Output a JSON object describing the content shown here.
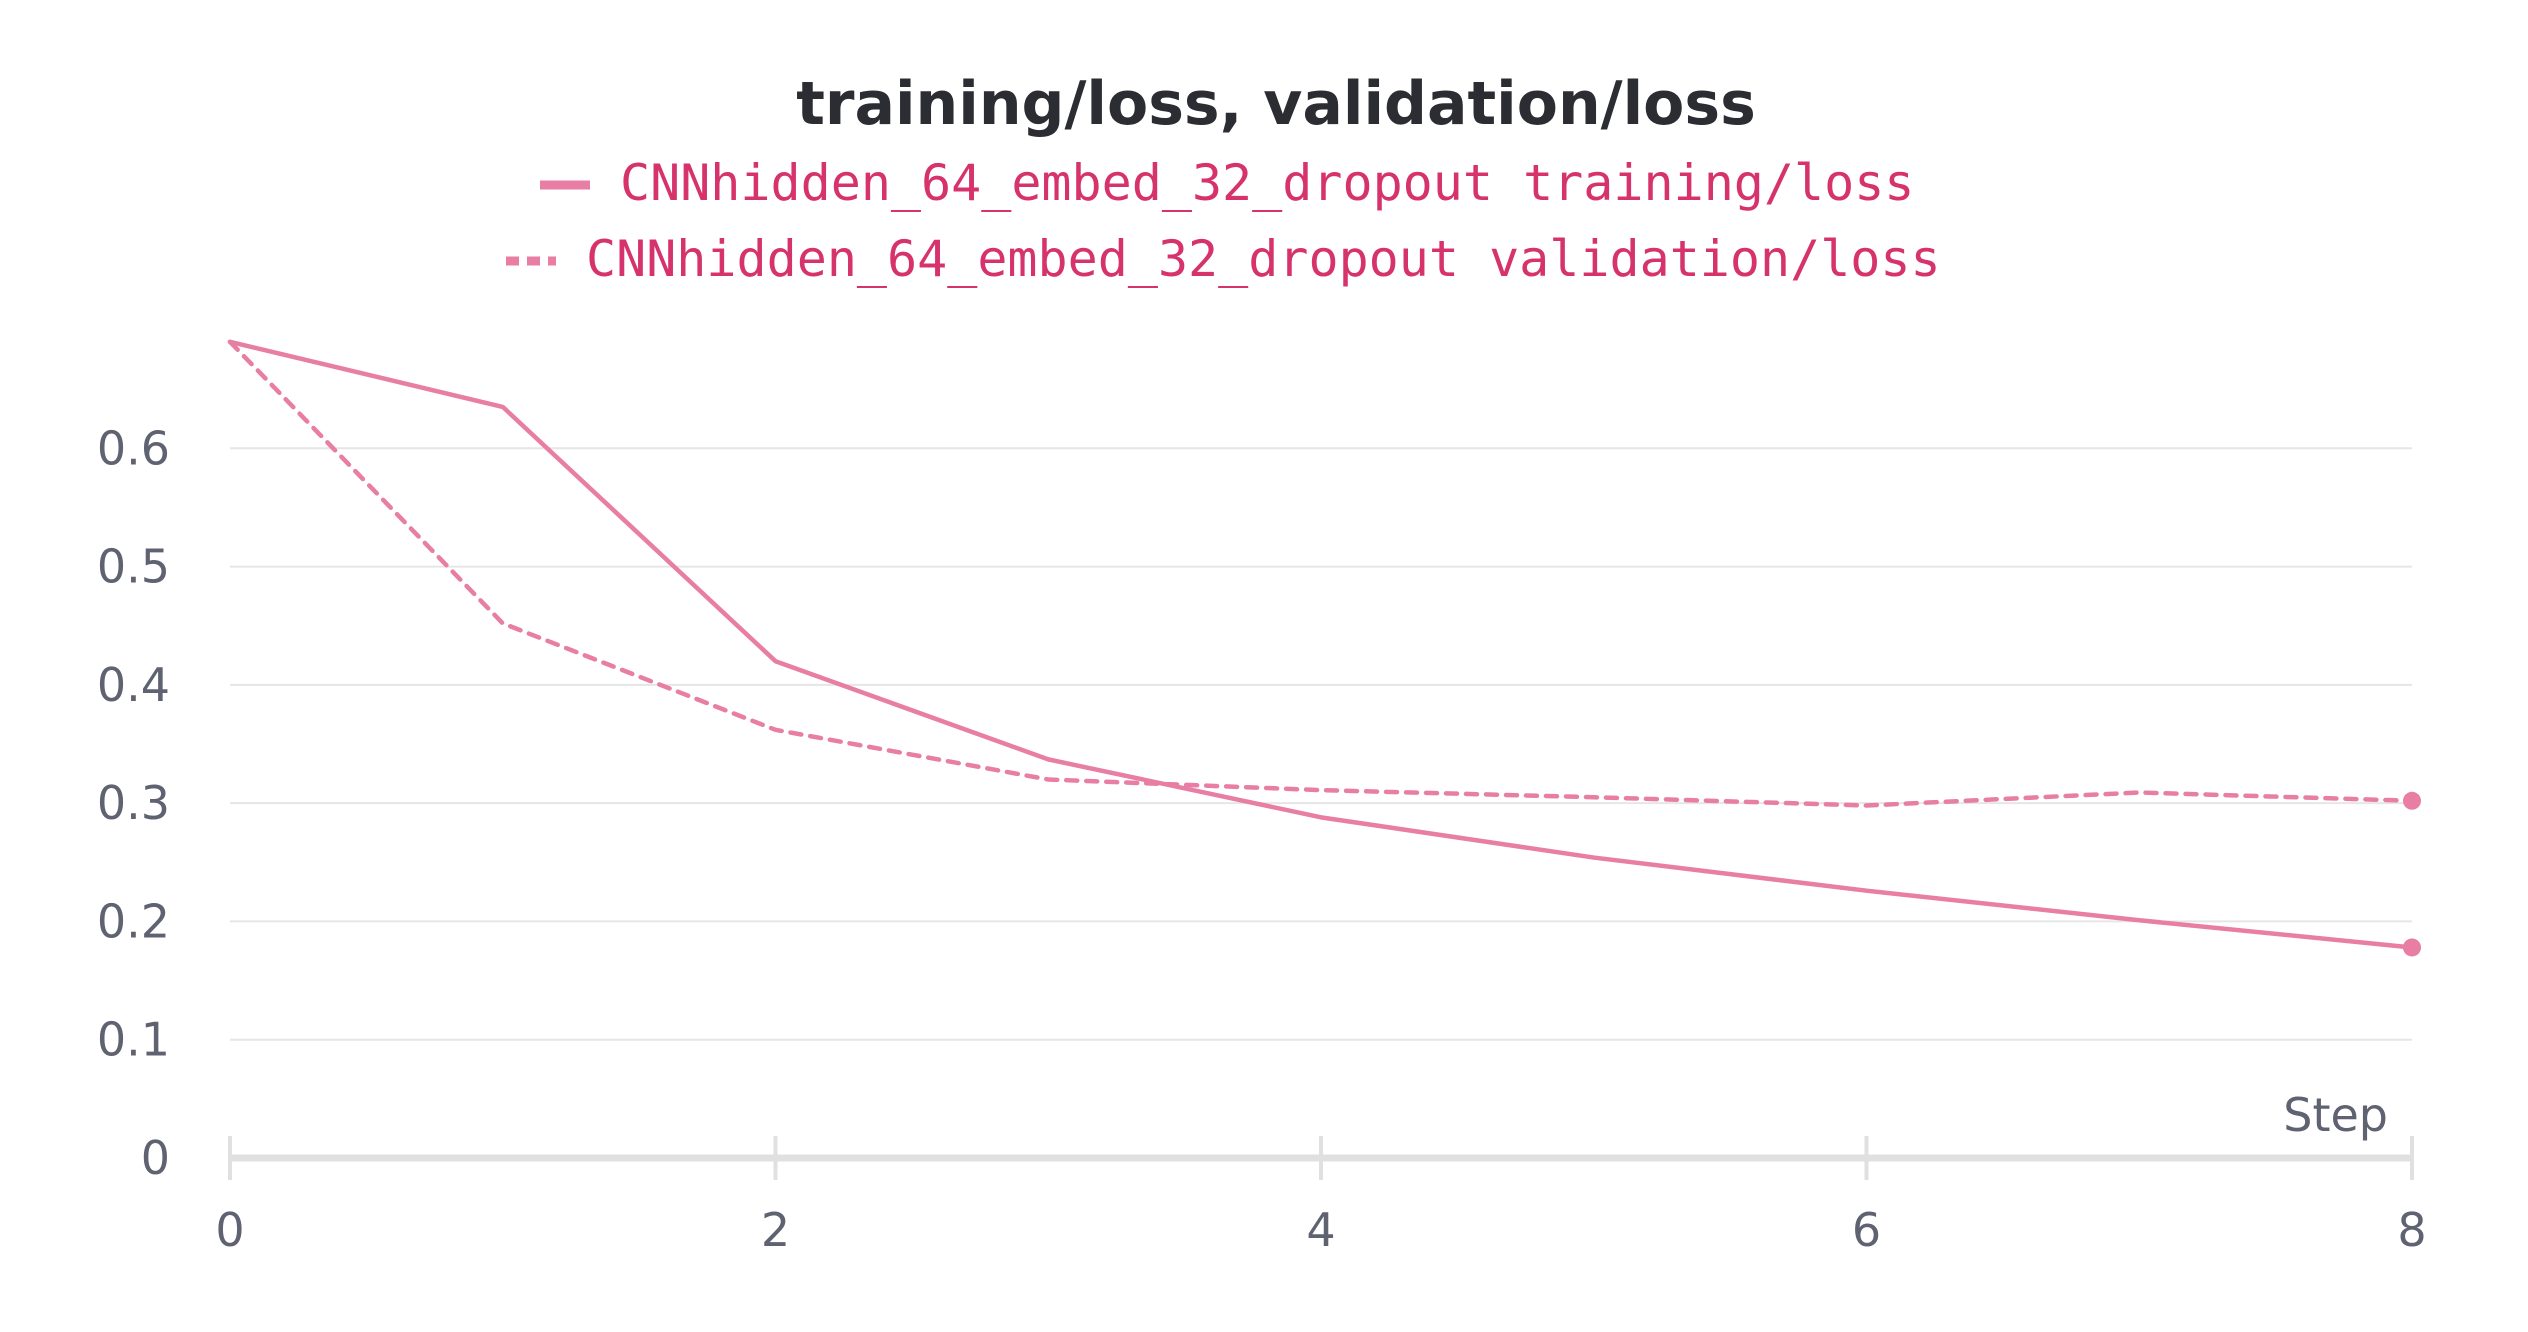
{
  "chart_data": {
    "type": "line",
    "title": "training/loss, validation/loss",
    "xlabel": "Step",
    "ylabel": "",
    "xlim": [
      0,
      8
    ],
    "ylim": [
      0,
      0.7
    ],
    "x_ticks": [
      "0",
      "2",
      "4",
      "6",
      "8"
    ],
    "y_ticks": [
      "0",
      "0.1",
      "0.2",
      "0.3",
      "0.4",
      "0.5",
      "0.6"
    ],
    "grid": true,
    "legend_position": "top-center",
    "x": [
      0,
      1,
      2,
      3,
      4,
      5,
      6,
      7,
      8
    ],
    "series": [
      {
        "name": "CNNhidden_64_embed_32_dropout training/loss",
        "style": "solid",
        "color": "#e87ea3",
        "values": [
          0.69,
          0.635,
          0.42,
          0.337,
          0.288,
          0.254,
          0.226,
          0.201,
          0.178
        ]
      },
      {
        "name": "CNNhidden_64_embed_32_dropout validation/loss",
        "style": "dashed",
        "color": "#e87ea3",
        "values": [
          0.69,
          0.452,
          0.362,
          0.32,
          0.311,
          0.305,
          0.298,
          0.309,
          0.302
        ]
      }
    ],
    "legend_text_color": "#d6336c",
    "title_color": "#2b2d33",
    "tick_color": "#5f6270"
  }
}
